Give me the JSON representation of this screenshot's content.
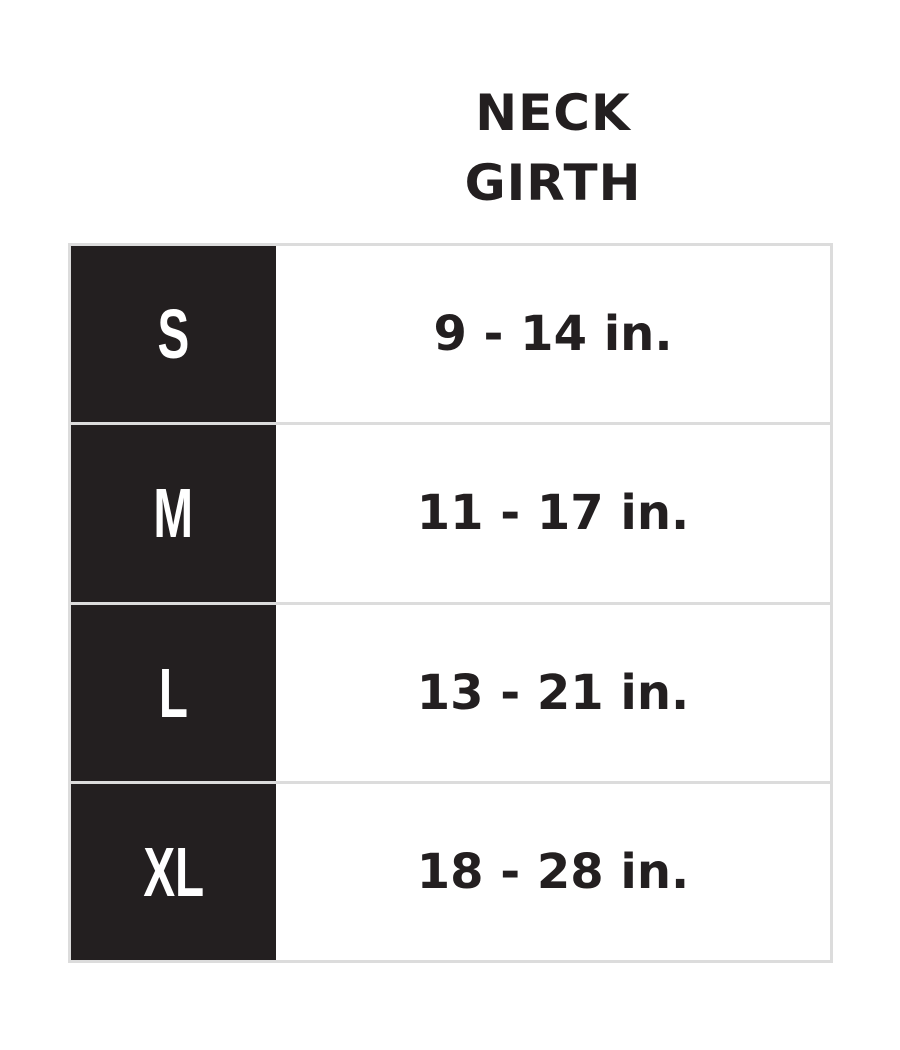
{
  "header": {
    "line1": "NECK",
    "line2": "GIRTH"
  },
  "rows": [
    {
      "size": "S",
      "neck_girth": "9 - 14 in."
    },
    {
      "size": "M",
      "neck_girth": "11 - 17 in."
    },
    {
      "size": "L",
      "neck_girth": "13 - 21 in."
    },
    {
      "size": "XL",
      "neck_girth": "18 - 28 in."
    }
  ],
  "colors": {
    "size_cell_bg": "#231f20",
    "border": "#dcdcdc",
    "text": "#231f20"
  }
}
